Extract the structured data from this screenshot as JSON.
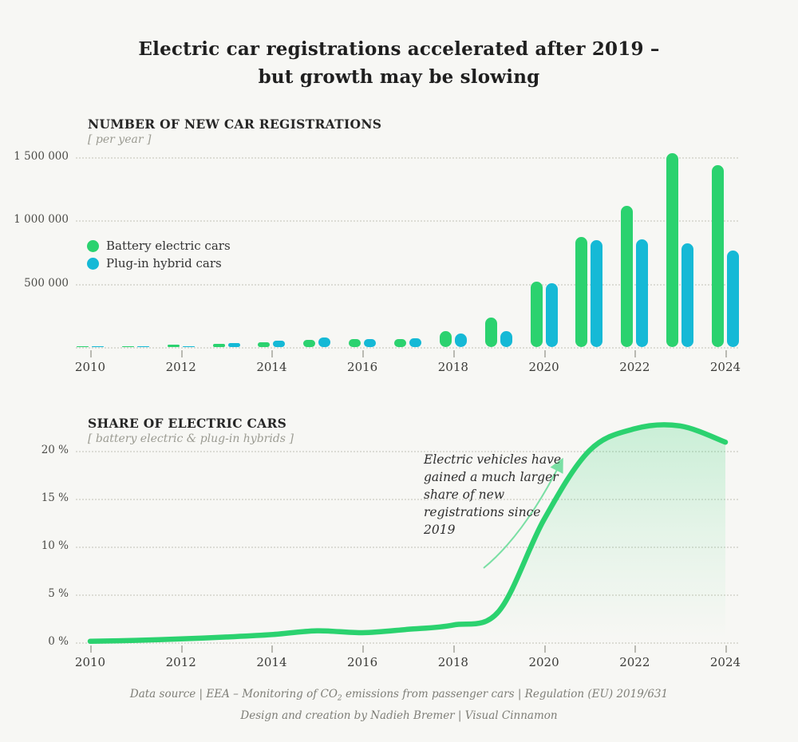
{
  "title": {
    "line1": "Electric car registrations accelerated after 2019 –",
    "line2": "but growth may be slowing"
  },
  "chart_data": [
    {
      "type": "bar",
      "title": "NUMBER OF NEW CAR REGISTRATIONS",
      "subtitle": "[ per year ]",
      "categories": [
        2010,
        2011,
        2012,
        2013,
        2014,
        2015,
        2016,
        2017,
        2018,
        2019,
        2020,
        2021,
        2022,
        2023,
        2024
      ],
      "series": [
        {
          "name": "Battery electric cars",
          "color": "#2bd26f",
          "values": [
            700,
            9000,
            16000,
            24000,
            37000,
            56000,
            63000,
            60000,
            128000,
            233000,
            515000,
            870000,
            1115000,
            1530000,
            1435000
          ]
        },
        {
          "name": "Plug-in hybrid cars",
          "color": "#15b9d6",
          "values": [
            300,
            2000,
            9000,
            33000,
            52000,
            78000,
            66000,
            70000,
            108000,
            128000,
            505000,
            845000,
            850000,
            820000,
            760000
          ]
        }
      ],
      "ylim": [
        0,
        1600000
      ],
      "grid": "horizontal-dotted",
      "legend_position": "left-middle",
      "y_ticks": [
        {
          "value": 1500000,
          "label": "1 500 000"
        },
        {
          "value": 1000000,
          "label": "1 000 000"
        },
        {
          "value": 500000,
          "label": "500 000"
        }
      ],
      "x_tick_years": [
        2010,
        2012,
        2014,
        2016,
        2018,
        2020,
        2022,
        2024
      ]
    },
    {
      "type": "area",
      "title": "SHARE OF ELECTRIC CARS",
      "subtitle": "[ battery electric & plug-in hybrids ]",
      "x": [
        2010,
        2011,
        2012,
        2013,
        2014,
        2015,
        2016,
        2017,
        2018,
        2019,
        2020,
        2021,
        2022,
        2023,
        2024
      ],
      "values": [
        0.1,
        0.2,
        0.35,
        0.55,
        0.8,
        1.2,
        1.0,
        1.35,
        1.8,
        3.2,
        12.8,
        20.0,
        22.3,
        22.6,
        20.9
      ],
      "ylim": [
        0,
        23
      ],
      "grid": "horizontal-dotted",
      "line_color": "#2bd26f",
      "y_ticks": [
        {
          "value": 20,
          "label": "20 %"
        },
        {
          "value": 15,
          "label": "15 %"
        },
        {
          "value": 10,
          "label": "10 %"
        },
        {
          "value": 5,
          "label": "5 %"
        },
        {
          "value": 0,
          "label": "0 %"
        }
      ],
      "x_tick_years": [
        2010,
        2012,
        2014,
        2016,
        2018,
        2020,
        2022,
        2024
      ]
    }
  ],
  "annotation": {
    "text": "Electric vehicles have\ngained a much larger\nshare of new\nregistrations since\n2019"
  },
  "footer": {
    "line1_pre": "Data source | EEA – Monitoring of CO",
    "line1_sub": "2",
    "line1_post": " emissions from passenger cars | Regulation (EU) 2019/631",
    "line2": "Design and creation by Nadieh Bremer | Visual Cinnamon"
  },
  "colors": {
    "background": "#f7f7f4",
    "battery_electric": "#2bd26f",
    "plugin_hybrid": "#15b9d6",
    "area_fill": "#2bd26f",
    "arrow": "#7adfa4",
    "gridline": "#dcdcd5"
  }
}
